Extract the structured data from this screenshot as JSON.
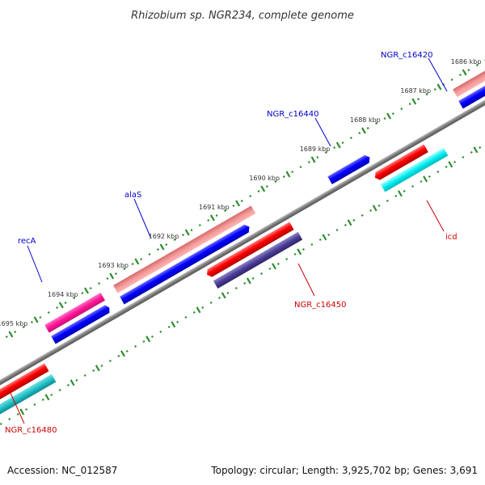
{
  "title": "Rhizobium sp. NGR234, complete genome",
  "footer": {
    "accession": "Accession: NC_012587",
    "summary": "Topology: circular; Length: 3,925,702 bp; Genes: 3,691"
  },
  "kbp_labels": [
    "1686 kbp",
    "1687 kbp",
    "1688 kbp",
    "1689 kbp",
    "1690 kbp",
    "1691 kbp",
    "1692 kbp",
    "1693 kbp",
    "1694 kbp",
    "1695 kbp"
  ],
  "gene_labels": {
    "NGR_c16420": "NGR_c16420",
    "NGR_c16440": "NGR_c16440",
    "alaS": "alaS",
    "recA": "recA",
    "icd": "icd",
    "NGR_c16450": "NGR_c16450",
    "NGR_c16480": "NGR_c16480"
  },
  "colors": {
    "forward_label": "#0000cc",
    "reverse_label": "#cc0000",
    "backbone": "#808080",
    "tick": "#2e8b2e"
  }
}
